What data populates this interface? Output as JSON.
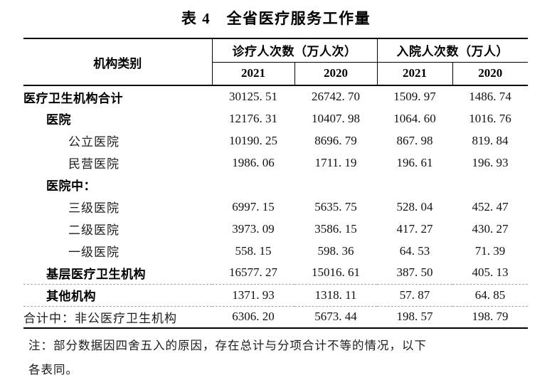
{
  "title": "表 4　全省医疗服务工作量",
  "table": {
    "col_group_headers": {
      "category": "机构类别",
      "outpatient": "诊疗人次数（万人次）",
      "admission": "入院人次数（万人）"
    },
    "year_headers": [
      "2021",
      "2020",
      "2021",
      "2020"
    ],
    "rows": [
      {
        "label": "医疗卫生机构合计",
        "bold": true,
        "indent": 0,
        "separator_above": false,
        "values": [
          "30125. 51",
          "26742. 70",
          "1509. 97",
          "1486. 74"
        ]
      },
      {
        "label": "医院",
        "bold": true,
        "indent": 1,
        "separator_above": false,
        "values": [
          "12176. 31",
          "10407. 98",
          "1064. 60",
          "1016. 76"
        ]
      },
      {
        "label": "公立医院",
        "bold": false,
        "indent": 2,
        "separator_above": false,
        "values": [
          "10190. 25",
          "8696. 79",
          "867. 98",
          "819. 84"
        ]
      },
      {
        "label": "民营医院",
        "bold": false,
        "indent": 2,
        "separator_above": false,
        "values": [
          "1986. 06",
          "1711. 19",
          "196. 61",
          "196. 93"
        ]
      },
      {
        "label": "医院中：",
        "bold": true,
        "indent": 1,
        "separator_above": false,
        "values": [
          "",
          "",
          "",
          ""
        ]
      },
      {
        "label": "三级医院",
        "bold": false,
        "indent": 2,
        "separator_above": false,
        "values": [
          "6997. 15",
          "5635. 75",
          "528. 04",
          "452. 47"
        ]
      },
      {
        "label": "二级医院",
        "bold": false,
        "indent": 2,
        "separator_above": false,
        "values": [
          "3973. 09",
          "3586. 15",
          "417. 27",
          "430. 27"
        ]
      },
      {
        "label": "一级医院",
        "bold": false,
        "indent": 2,
        "separator_above": false,
        "values": [
          "558. 15",
          "598. 36",
          "64. 53",
          "71. 39"
        ]
      },
      {
        "label": "基层医疗卫生机构",
        "bold": true,
        "indent": 1,
        "separator_above": false,
        "values": [
          "16577. 27",
          "15016. 61",
          "387. 50",
          "405. 13"
        ]
      },
      {
        "label": "其他机构",
        "bold": true,
        "indent": 1,
        "separator_above": true,
        "values": [
          "1371. 93",
          "1318. 11",
          "57. 87",
          "64. 85"
        ]
      },
      {
        "label": "合计中：非公医疗卫生机构",
        "bold": false,
        "indent": 0,
        "separator_above": true,
        "values": [
          "6306. 20",
          "5673. 44",
          "198. 57",
          "198. 79"
        ]
      }
    ]
  },
  "note": {
    "line1": "注：部分数据因四舍五入的原因，存在总计与分项合计不等的情况，以下",
    "line2": "各表同。"
  }
}
